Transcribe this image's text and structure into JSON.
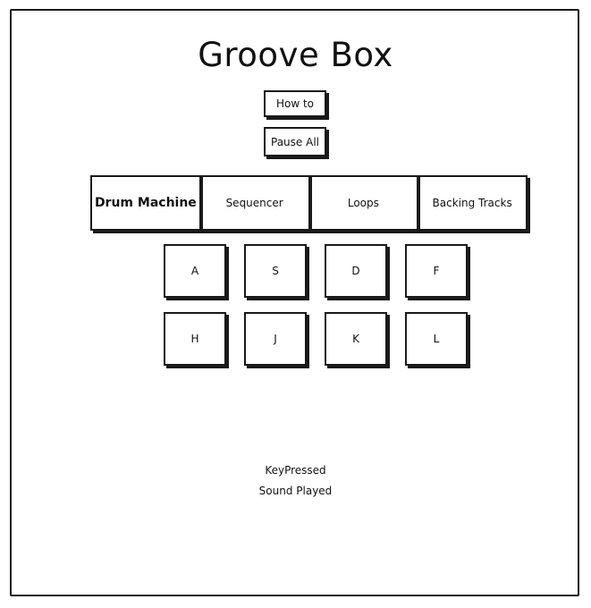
{
  "app": {
    "title": "Groove Box"
  },
  "controls": {
    "howto_label": "How to",
    "pause_label": "Pause All"
  },
  "tabs": [
    {
      "label": "Drum Machine",
      "active": true
    },
    {
      "label": "Sequencer",
      "active": false
    },
    {
      "label": "Loops",
      "active": false
    },
    {
      "label": "Backing Tracks",
      "active": false
    }
  ],
  "pads": {
    "row1": [
      "A",
      "S",
      "D",
      "F"
    ],
    "row2": [
      "H",
      "J",
      "K",
      "L"
    ]
  },
  "status": {
    "key_pressed": "KeyPressed",
    "sound_played": "Sound Played"
  }
}
